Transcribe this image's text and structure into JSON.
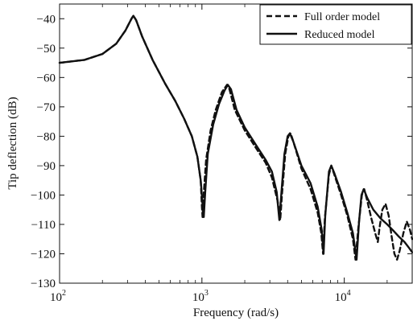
{
  "chart_data": {
    "type": "line",
    "xlabel": "Frequency (rad/s)",
    "ylabel": "Tip deflection (dB)",
    "xscale": "log",
    "xlim": [
      100,
      30000
    ],
    "ylim": [
      -130,
      -35
    ],
    "x_ticks": [
      {
        "value": 100,
        "base": "10",
        "exp": "2"
      },
      {
        "value": 1000,
        "base": "10",
        "exp": "3"
      },
      {
        "value": 10000,
        "base": "10",
        "exp": "4"
      }
    ],
    "y_ticks": [
      -40,
      -50,
      -60,
      -70,
      -80,
      -90,
      -100,
      -110,
      -120,
      -130
    ],
    "grid": false,
    "legend_position": "top-right",
    "series": [
      {
        "name": "Full order model",
        "style": "dashed",
        "color": "#111111",
        "points": [
          [
            100,
            -55
          ],
          [
            150,
            -54
          ],
          [
            200,
            -52
          ],
          [
            250,
            -48.5
          ],
          [
            290,
            -44
          ],
          [
            320,
            -40
          ],
          [
            330,
            -39
          ],
          [
            345,
            -40.5
          ],
          [
            380,
            -46
          ],
          [
            450,
            -54
          ],
          [
            550,
            -62
          ],
          [
            650,
            -68
          ],
          [
            750,
            -74
          ],
          [
            850,
            -80
          ],
          [
            930,
            -87
          ],
          [
            980,
            -95
          ],
          [
            1000,
            -104
          ],
          [
            1010,
            -107.5
          ],
          [
            1025,
            -101
          ],
          [
            1070,
            -88
          ],
          [
            1150,
            -78
          ],
          [
            1250,
            -71
          ],
          [
            1380,
            -65
          ],
          [
            1500,
            -62.5
          ],
          [
            1560,
            -64
          ],
          [
            1700,
            -71
          ],
          [
            2000,
            -78
          ],
          [
            2400,
            -84
          ],
          [
            2800,
            -89
          ],
          [
            3100,
            -94
          ],
          [
            3400,
            -102
          ],
          [
            3550,
            -108.5
          ],
          [
            3650,
            -100
          ],
          [
            3850,
            -86
          ],
          [
            4050,
            -80
          ],
          [
            4200,
            -79
          ],
          [
            4400,
            -82
          ],
          [
            5000,
            -91
          ],
          [
            5800,
            -98
          ],
          [
            6500,
            -106
          ],
          [
            6900,
            -113
          ],
          [
            7100,
            -120
          ],
          [
            7300,
            -108
          ],
          [
            7800,
            -93
          ],
          [
            8100,
            -90
          ],
          [
            8500,
            -93
          ],
          [
            9500,
            -100
          ],
          [
            10500,
            -107
          ],
          [
            11500,
            -115
          ],
          [
            12000,
            -122
          ],
          [
            12500,
            -112
          ],
          [
            13300,
            -100
          ],
          [
            13800,
            -98
          ],
          [
            14500,
            -102
          ],
          [
            15500,
            -108
          ],
          [
            16500,
            -113
          ],
          [
            17200,
            -116
          ],
          [
            17700,
            -111
          ],
          [
            18500,
            -105
          ],
          [
            19500,
            -103
          ],
          [
            20500,
            -107
          ],
          [
            21500,
            -114
          ],
          [
            22500,
            -120
          ],
          [
            23500,
            -122
          ],
          [
            24500,
            -119
          ],
          [
            26000,
            -113
          ],
          [
            27500,
            -109
          ],
          [
            29000,
            -112
          ],
          [
            30000,
            -115
          ]
        ]
      },
      {
        "name": "Reduced model",
        "style": "solid",
        "color": "#111111",
        "points": [
          [
            100,
            -55
          ],
          [
            150,
            -54
          ],
          [
            200,
            -52
          ],
          [
            250,
            -48.5
          ],
          [
            290,
            -44
          ],
          [
            320,
            -40
          ],
          [
            330,
            -39
          ],
          [
            345,
            -40.5
          ],
          [
            380,
            -46
          ],
          [
            450,
            -54
          ],
          [
            550,
            -62
          ],
          [
            650,
            -68
          ],
          [
            750,
            -74
          ],
          [
            850,
            -80
          ],
          [
            930,
            -87
          ],
          [
            980,
            -95
          ],
          [
            1010,
            -103
          ],
          [
            1030,
            -107.5
          ],
          [
            1055,
            -99
          ],
          [
            1100,
            -86
          ],
          [
            1200,
            -76
          ],
          [
            1320,
            -69
          ],
          [
            1440,
            -64.5
          ],
          [
            1520,
            -62.5
          ],
          [
            1600,
            -64
          ],
          [
            1750,
            -71
          ],
          [
            2000,
            -77
          ],
          [
            2400,
            -83
          ],
          [
            2800,
            -88
          ],
          [
            3100,
            -92
          ],
          [
            3350,
            -99
          ],
          [
            3500,
            -108.5
          ],
          [
            3620,
            -99
          ],
          [
            3800,
            -86
          ],
          [
            4000,
            -80
          ],
          [
            4150,
            -79
          ],
          [
            4400,
            -82
          ],
          [
            5000,
            -90
          ],
          [
            5800,
            -96
          ],
          [
            6500,
            -104
          ],
          [
            6950,
            -112
          ],
          [
            7150,
            -120
          ],
          [
            7350,
            -107
          ],
          [
            7800,
            -92
          ],
          [
            8100,
            -90
          ],
          [
            8500,
            -92.5
          ],
          [
            9500,
            -99
          ],
          [
            10500,
            -106
          ],
          [
            11500,
            -113
          ],
          [
            12200,
            -122
          ],
          [
            12700,
            -109
          ],
          [
            13200,
            -100
          ],
          [
            13700,
            -98
          ],
          [
            14500,
            -101
          ],
          [
            16000,
            -105
          ],
          [
            18000,
            -108
          ],
          [
            20000,
            -110
          ],
          [
            22000,
            -112
          ],
          [
            24000,
            -114
          ],
          [
            26500,
            -116
          ],
          [
            28500,
            -118
          ],
          [
            30000,
            -119.5
          ]
        ]
      }
    ]
  }
}
